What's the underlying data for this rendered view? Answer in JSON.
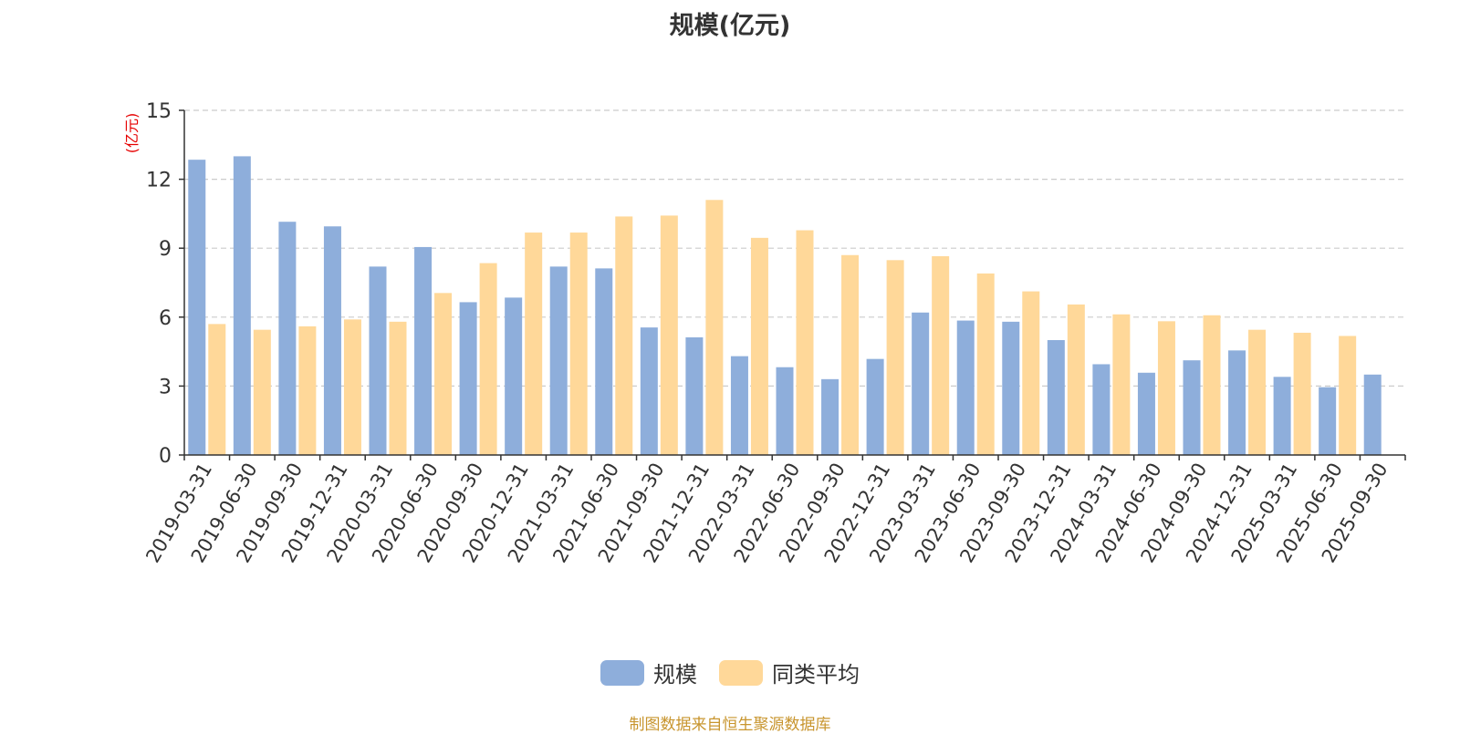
{
  "title": "规模(亿元)",
  "source": "制图数据来自恒生聚源数据库",
  "colors": {
    "scale": "#8eaedb",
    "avg": "#ffd899",
    "ylabel": "#e60000"
  },
  "chart_data": {
    "type": "bar",
    "title": "规模(亿元)",
    "ylabel": "(亿元)",
    "xlabel": "",
    "ylim": [
      0,
      15
    ],
    "yticks": [
      0,
      3,
      6,
      9,
      12,
      15
    ],
    "grid": true,
    "legend_position": "bottom",
    "categories": [
      "2019-03-31",
      "2019-06-30",
      "2019-09-30",
      "2019-12-31",
      "2020-03-31",
      "2020-06-30",
      "2020-09-30",
      "2020-12-31",
      "2021-03-31",
      "2021-06-30",
      "2021-09-30",
      "2021-12-31",
      "2022-03-31",
      "2022-06-30",
      "2022-09-30",
      "2022-12-31",
      "2023-03-31",
      "2023-06-30",
      "2023-09-30",
      "2023-12-31",
      "2024-03-31",
      "2024-06-30",
      "2024-09-30",
      "2024-12-31",
      "2025-03-31",
      "2025-06-30",
      "2025-09-30"
    ],
    "series": [
      {
        "name": "规模",
        "color": "#8eaedb",
        "values": [
          12.85,
          13.0,
          10.15,
          9.95,
          8.2,
          9.05,
          6.65,
          6.85,
          8.2,
          8.12,
          5.55,
          5.12,
          4.3,
          3.82,
          3.3,
          4.18,
          6.2,
          5.85,
          5.8,
          5.0,
          3.95,
          3.58,
          4.12,
          4.55,
          3.4,
          2.95,
          3.5
        ]
      },
      {
        "name": "同类平均",
        "color": "#ffd899",
        "values": [
          5.7,
          5.45,
          5.6,
          5.9,
          5.8,
          7.05,
          8.35,
          9.68,
          9.68,
          10.38,
          10.42,
          11.1,
          9.45,
          9.78,
          8.7,
          8.48,
          8.65,
          7.9,
          7.12,
          6.55,
          6.12,
          5.82,
          6.08,
          5.45,
          5.32,
          5.18,
          null
        ]
      }
    ]
  }
}
